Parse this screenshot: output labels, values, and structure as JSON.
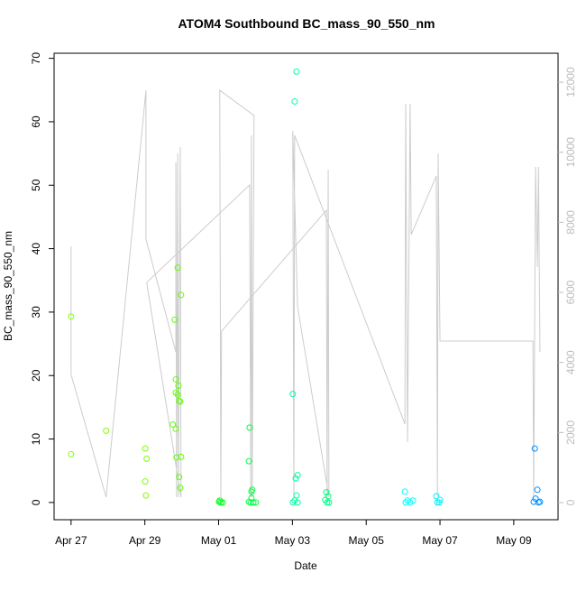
{
  "chart_data": {
    "type": "scatter",
    "title": "ATOM4 Southbound BC_mass_90_550_nm",
    "x_label": "Date",
    "y_label": "BC_mass_90_550_nm",
    "xlim": [
      -0.46,
      13.2
    ],
    "xticks": [
      {
        "value": 0,
        "label": "Apr 27"
      },
      {
        "value": 2,
        "label": "Apr 29"
      },
      {
        "value": 4,
        "label": "May 01"
      },
      {
        "value": 6,
        "label": "May 03"
      },
      {
        "value": 8,
        "label": "May 05"
      },
      {
        "value": 10,
        "label": "May 07"
      },
      {
        "value": 12,
        "label": "May 09"
      }
    ],
    "ylim": [
      -2.72,
      70.8
    ],
    "yticks": [
      0,
      10,
      20,
      30,
      40,
      50,
      60,
      70
    ],
    "y2lim": [
      -489,
      12825
    ],
    "y2ticks": [
      0,
      2000,
      4000,
      6000,
      8000,
      10000,
      12000
    ],
    "points": {
      "x": [
        0,
        0,
        0.95,
        2.01,
        2.05,
        2.01,
        2.03,
        2.81,
        2.89,
        2.98,
        2.84,
        2.84,
        2.89,
        2.91,
        2.93,
        2.96,
        2.76,
        2.84,
        2.86,
        2.98,
        2.93,
        2.96,
        4.01,
        4.06,
        4.11,
        4.03,
        4.82,
        4.84,
        4.91,
        4.89,
        4.82,
        4.87,
        4.94,
        5.01,
        4.89,
        6.11,
        6.06,
        6.01,
        6.14,
        6.09,
        6.11,
        6.01,
        6.06,
        6.14,
        6.92,
        6.97,
        6.94,
        6.99,
        6.89,
        9.05,
        9.12,
        9.19,
        9.27,
        9.07,
        9.9,
        10.0,
        9.93,
        9.98,
        12.57,
        12.64,
        12.59,
        12.67,
        12.71,
        12.54
      ],
      "values": [
        29.3,
        7.6,
        11.3,
        8.5,
        6.9,
        3.3,
        1.1,
        28.8,
        37,
        32.7,
        19.4,
        17.3,
        17.0,
        18.4,
        16.0,
        15.9,
        12.3,
        11.6,
        7.1,
        7.2,
        4.0,
        2.3,
        0.1,
        0,
        0,
        0.3,
        6.5,
        11.8,
        2.0,
        1.7,
        0.1,
        0,
        0,
        0,
        0.7,
        67.9,
        63.2,
        17.1,
        4.3,
        3.8,
        1.1,
        0,
        0.3,
        0,
        1.6,
        1.0,
        0,
        0,
        0.4,
        1.7,
        0.3,
        0,
        0.3,
        0,
        1.0,
        0.4,
        0,
        0,
        8.5,
        2.0,
        0.6,
        0,
        0.1,
        0.1
      ],
      "colors": [
        "#80ff00",
        "#80ff00",
        "#80ff00",
        "#80ff00",
        "#80ff00",
        "#80ff00",
        "#80ff00",
        "#60ff00",
        "#60ff00",
        "#60ff00",
        "#60ff00",
        "#60ff00",
        "#60ff00",
        "#60ff00",
        "#60ff00",
        "#60ff00",
        "#60ff00",
        "#60ff00",
        "#60ff00",
        "#60ff00",
        "#60ff00",
        "#60ff00",
        "#00ff20",
        "#00ff20",
        "#00ff20",
        "#00ff20",
        "#00ff40",
        "#00ff40",
        "#00ff40",
        "#00ff40",
        "#00ff40",
        "#00ff40",
        "#00ff40",
        "#00ff40",
        "#00ff40",
        "#00ffa0",
        "#00ffa0",
        "#00ffa0",
        "#00ffa0",
        "#00ffa0",
        "#00ffa0",
        "#00ffa0",
        "#00ffa0",
        "#00ffa0",
        "#00ff80",
        "#00ff80",
        "#00ff80",
        "#00ff80",
        "#00ff80",
        "#00ffff",
        "#00ffff",
        "#00ffff",
        "#00ffff",
        "#00ffff",
        "#00f0ff",
        "#00f0ff",
        "#00f0ff",
        "#00f0ff",
        "#0090ff",
        "#0090ff",
        "#0090ff",
        "#0090ff",
        "#0090ff",
        "#0090ff"
      ]
    },
    "line": {
      "axis": "y2",
      "color": "#cccccc",
      "x": [
        0,
        0,
        0.95,
        2.03,
        2.03,
        2.84,
        2.84,
        2.86,
        2.89,
        2.91,
        2.96,
        2.98,
        2.05,
        4.84,
        4.87,
        4.89,
        4.91,
        4.96,
        4.03,
        4.06,
        4.08,
        6.92,
        6.94,
        6.97,
        6.99,
        6.14,
        6.01,
        6.04,
        6.06,
        9.05,
        9.07,
        9.12,
        9.19,
        9.22,
        9.9,
        9.93,
        9.95,
        10.0,
        12.52,
        12.54,
        12.59,
        12.64,
        12.67,
        12.71
      ],
      "values": [
        7313,
        3657,
        155,
        11768,
        7519,
        4300,
        9708,
        155,
        9965,
        155,
        10146,
        155,
        6283,
        9064,
        155,
        10480,
        155,
        11047,
        11768,
        155,
        4893,
        8343,
        155,
        9502,
        155,
        5588,
        10609,
        155,
        10480,
        2240,
        11382,
        1725,
        11382,
        7648,
        9322,
        155,
        9965,
        4609,
        4609,
        155,
        9579,
        6721,
        9579,
        4300
      ]
    }
  }
}
